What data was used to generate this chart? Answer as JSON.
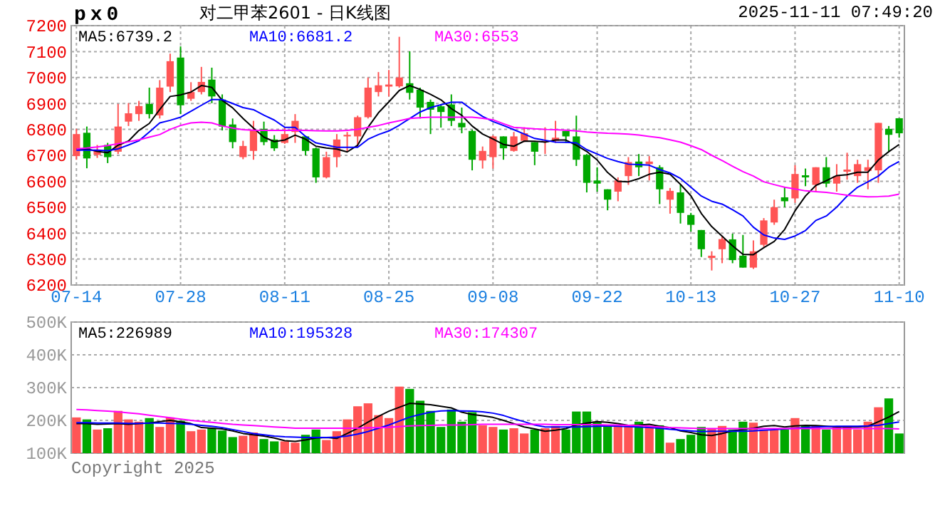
{
  "chart_data": [
    {
      "type": "candlestick",
      "title": "px0",
      "subtitle": "对二甲苯2601 - 日K线图",
      "annotations": [
        "2025-11-11 07:49:20"
      ],
      "categories": [
        "07-14",
        null,
        null,
        null,
        null,
        null,
        null,
        null,
        null,
        null,
        "07-28",
        null,
        null,
        null,
        null,
        null,
        null,
        null,
        null,
        null,
        "08-11",
        null,
        null,
        null,
        null,
        null,
        null,
        null,
        null,
        null,
        "08-25",
        null,
        null,
        null,
        null,
        null,
        null,
        null,
        null,
        null,
        "09-08",
        null,
        null,
        null,
        null,
        null,
        null,
        null,
        null,
        null,
        "09-22",
        null,
        null,
        null,
        null,
        null,
        null,
        null,
        null,
        "10-13",
        null,
        null,
        null,
        null,
        null,
        null,
        null,
        null,
        null,
        "10-27",
        null,
        null,
        null,
        null,
        null,
        null,
        null,
        null,
        null,
        "11-10"
      ],
      "ohlc": [
        [
          6697,
          6802,
          6683,
          6782
        ],
        [
          6787,
          6811,
          6650,
          6688
        ],
        [
          6702,
          6740,
          6690,
          6722
        ],
        [
          6740,
          6748,
          6670,
          6693
        ],
        [
          6714,
          6898,
          6705,
          6811
        ],
        [
          6830,
          6901,
          6813,
          6862
        ],
        [
          6859,
          6910,
          6833,
          6890
        ],
        [
          6898,
          6961,
          6842,
          6859
        ],
        [
          6854,
          6990,
          6842,
          6961
        ],
        [
          6965,
          7092,
          6944,
          7063
        ],
        [
          7077,
          7120,
          6859,
          6893
        ],
        [
          6918,
          6982,
          6910,
          6944
        ],
        [
          6944,
          7041,
          6935,
          6983
        ],
        [
          6992,
          7038,
          6901,
          6927
        ],
        [
          6915,
          6935,
          6796,
          6811
        ],
        [
          6819,
          6842,
          6727,
          6751
        ],
        [
          6693,
          6756,
          6685,
          6736
        ],
        [
          6717,
          6833,
          6683,
          6799
        ],
        [
          6802,
          6830,
          6739,
          6751
        ],
        [
          6761,
          6778,
          6717,
          6727
        ],
        [
          6748,
          6808,
          6744,
          6782
        ],
        [
          6790,
          6859,
          6748,
          6833
        ],
        [
          6773,
          6775,
          6700,
          6717
        ],
        [
          6727,
          6730,
          6594,
          6615
        ],
        [
          6615,
          6714,
          6611,
          6693
        ],
        [
          6693,
          6782,
          6654,
          6761
        ],
        [
          6773,
          6790,
          6714,
          6779
        ],
        [
          6773,
          6853,
          6731,
          6847
        ],
        [
          6847,
          7000,
          6842,
          6961
        ],
        [
          6944,
          7021,
          6927,
          6970
        ],
        [
          6965,
          7029,
          6927,
          6973
        ],
        [
          6966,
          7157,
          6961,
          7000
        ],
        [
          6978,
          7101,
          6915,
          6941
        ],
        [
          6953,
          6961,
          6842,
          6884
        ],
        [
          6906,
          6915,
          6782,
          6876
        ],
        [
          6889,
          6898,
          6807,
          6867
        ],
        [
          6896,
          6935,
          6813,
          6833
        ],
        [
          6825,
          6884,
          6785,
          6808
        ],
        [
          6794,
          6799,
          6642,
          6683
        ],
        [
          6680,
          6734,
          6649,
          6717
        ],
        [
          6693,
          6777,
          6649,
          6773
        ],
        [
          6773,
          6773,
          6683,
          6727
        ],
        [
          6717,
          6790,
          6714,
          6773
        ],
        [
          6756,
          6808,
          6751,
          6785
        ],
        [
          6751,
          6751,
          6662,
          6714
        ],
        [
          6751,
          6808,
          6705,
          6756
        ],
        [
          6756,
          6833,
          6748,
          6768
        ],
        [
          6794,
          6794,
          6748,
          6773
        ],
        [
          6773,
          6853,
          6659,
          6683
        ],
        [
          6702,
          6705,
          6557,
          6594
        ],
        [
          6603,
          6654,
          6560,
          6591
        ],
        [
          6569,
          6569,
          6488,
          6529
        ],
        [
          6560,
          6615,
          6523,
          6603
        ],
        [
          6620,
          6693,
          6586,
          6674
        ],
        [
          6676,
          6705,
          6620,
          6654
        ],
        [
          6666,
          6697,
          6603,
          6676
        ],
        [
          6654,
          6662,
          6512,
          6569
        ],
        [
          6529,
          6574,
          6475,
          6563
        ],
        [
          6557,
          6586,
          6437,
          6478
        ],
        [
          6470,
          6478,
          6406,
          6432
        ],
        [
          6412,
          6412,
          6308,
          6338
        ],
        [
          6304,
          6330,
          6256,
          6313
        ],
        [
          6338,
          6389,
          6284,
          6377
        ],
        [
          6376,
          6398,
          6284,
          6296
        ],
        [
          6313,
          6393,
          6267,
          6267
        ],
        [
          6267,
          6372,
          6262,
          6330
        ],
        [
          6355,
          6458,
          6347,
          6449
        ],
        [
          6441,
          6529,
          6432,
          6500
        ],
        [
          6538,
          6577,
          6500,
          6523
        ],
        [
          6534,
          6662,
          6517,
          6628
        ],
        [
          6623,
          6649,
          6581,
          6615
        ],
        [
          6586,
          6654,
          6560,
          6654
        ],
        [
          6654,
          6693,
          6577,
          6591
        ],
        [
          6591,
          6666,
          6560,
          6620
        ],
        [
          6637,
          6710,
          6606,
          6645
        ],
        [
          6620,
          6683,
          6594,
          6666
        ],
        [
          6640,
          6683,
          6569,
          6654
        ],
        [
          6642,
          6825,
          6594,
          6825
        ],
        [
          6802,
          6813,
          6714,
          6779
        ],
        [
          6843,
          6843,
          6768,
          6785
        ]
      ],
      "colors": [
        "#ff5555",
        "#00a800",
        "#ff5555",
        "#00a800",
        "#ff5555",
        "#ff5555",
        "#ff5555",
        "#00a800",
        "#ff5555",
        "#ff5555",
        "#00a800",
        "#ff5555",
        "#ff5555",
        "#00a800",
        "#00a800",
        "#00a800",
        "#ff5555",
        "#ff5555",
        "#00a800",
        "#00a800",
        "#ff5555",
        "#ff5555",
        "#00a800",
        "#00a800",
        "#ff5555",
        "#ff5555",
        "#ff5555",
        "#ff5555",
        "#ff5555",
        "#ff5555",
        "#ff5555",
        "#ff5555",
        "#00a800",
        "#00a800",
        "#00a800",
        "#00a800",
        "#00a800",
        "#00a800",
        "#00a800",
        "#ff5555",
        "#ff5555",
        "#00a800",
        "#ff5555",
        "#ff5555",
        "#00a800",
        "#ff5555",
        "#ff5555",
        "#00a800",
        "#00a800",
        "#00a800",
        "#00a800",
        "#00a800",
        "#ff5555",
        "#ff5555",
        "#00a800",
        "#ff5555",
        "#00a800",
        "#ff5555",
        "#00a800",
        "#00a800",
        "#00a800",
        "#ff5555",
        "#ff5555",
        "#00a800",
        "#00a800",
        "#ff5555",
        "#ff5555",
        "#ff5555",
        "#00a800",
        "#ff5555",
        "#00a800",
        "#ff5555",
        "#00a800",
        "#ff5555",
        "#ff5555",
        "#ff5555",
        "#ff5555",
        "#ff5555",
        "#00a800",
        "#00a800"
      ],
      "series": [
        {
          "name": "MA5:6739.2",
          "type": "line",
          "color": "#000000",
          "values": [
            6725,
            6725,
            6715,
            6710,
            6739,
            6755,
            6796,
            6823,
            6877,
            6927,
            6933,
            6944,
            6969,
            6962,
            6912,
            6883,
            6842,
            6805,
            6770,
            6753,
            6759,
            6778,
            6762,
            6735,
            6728,
            6724,
            6713,
            6739,
            6808,
            6864,
            6906,
            6950,
            6969,
            6954,
            6935,
            6914,
            6880,
            6854,
            6813,
            6782,
            6763,
            6742,
            6735,
            6755,
            6754,
            6751,
            6759,
            6759,
            6739,
            6715,
            6682,
            6634,
            6600,
            6598,
            6610,
            6627,
            6635,
            6627,
            6588,
            6544,
            6476,
            6425,
            6388,
            6351,
            6318,
            6317,
            6344,
            6368,
            6414,
            6486,
            6543,
            6584,
            6602,
            6622,
            6625,
            6635,
            6635,
            6682,
            6714,
            6742
          ]
        },
        {
          "name": "MA10:6681.2",
          "type": "line",
          "color": "#0000ff",
          "values": [
            6720,
            6720,
            6720,
            6718,
            6725,
            6740,
            6756,
            6790,
            6825,
            6835,
            6847,
            6870,
            6893,
            6915,
            6915,
            6900,
            6884,
            6876,
            6855,
            6836,
            6808,
            6808,
            6773,
            6748,
            6740,
            6731,
            6731,
            6731,
            6762,
            6780,
            6794,
            6816,
            6842,
            6867,
            6884,
            6895,
            6905,
            6905,
            6876,
            6850,
            6830,
            6815,
            6799,
            6782,
            6765,
            6758,
            6751,
            6750,
            6748,
            6722,
            6705,
            6688,
            6676,
            6666,
            6664,
            6662,
            6645,
            6632,
            6611,
            6577,
            6543,
            6523,
            6512,
            6490,
            6466,
            6423,
            6393,
            6381,
            6376,
            6389,
            6410,
            6449,
            6466,
            6500,
            6543,
            6577,
            6598,
            6620,
            6654,
            6676
          ]
        },
        {
          "name": "MA30:6553",
          "type": "line",
          "color": "#ff00ff",
          "values": [
            6725,
            6728,
            6732,
            6738,
            6745,
            6752,
            6760,
            6770,
            6780,
            6800,
            6815,
            6825,
            6828,
            6825,
            6813,
            6805,
            6799,
            6797,
            6796,
            6796,
            6796,
            6797,
            6796,
            6795,
            6794,
            6794,
            6796,
            6800,
            6808,
            6815,
            6825,
            6833,
            6842,
            6845,
            6847,
            6847,
            6847,
            6847,
            6847,
            6843,
            6837,
            6822,
            6808,
            6805,
            6802,
            6800,
            6799,
            6797,
            6794,
            6790,
            6787,
            6785,
            6784,
            6782,
            6778,
            6773,
            6768,
            6760,
            6751,
            6737,
            6722,
            6700,
            6680,
            6658,
            6637,
            6620,
            6598,
            6587,
            6577,
            6570,
            6563,
            6560,
            6557,
            6552,
            6546,
            6543,
            6540,
            6541,
            6543,
            6550
          ]
        }
      ],
      "ylim": [
        6200,
        7200
      ],
      "yticks": [
        6200,
        6300,
        6400,
        6500,
        6600,
        6700,
        6800,
        6900,
        7000,
        7100,
        7200
      ],
      "grid": true,
      "legend": "top left"
    },
    {
      "type": "bar",
      "annotations": [
        "Copyright 2025"
      ],
      "tick_labels": "y",
      "categories": [
        null,
        null,
        null,
        null,
        null,
        null,
        null,
        null,
        null,
        null,
        null,
        null,
        null,
        null,
        null,
        null,
        null,
        null,
        null,
        null,
        null,
        null,
        null,
        null,
        null,
        null,
        null,
        null,
        null,
        null,
        null,
        null,
        null,
        null,
        null,
        null,
        null,
        null,
        null,
        null,
        null,
        null,
        null,
        null,
        null,
        null,
        null,
        null,
        null,
        null,
        null,
        null,
        null,
        null,
        null,
        null,
        null,
        null,
        null,
        null,
        null,
        null,
        null,
        null,
        null,
        null,
        null,
        null,
        null,
        null,
        null,
        null,
        null,
        null,
        null,
        null,
        null,
        null,
        null,
        null
      ],
      "values": [
        209000,
        203000,
        172000,
        176000,
        229000,
        203000,
        196000,
        207000,
        180000,
        209000,
        199000,
        167000,
        172000,
        176000,
        169000,
        149000,
        153000,
        163000,
        143000,
        136000,
        136000,
        132000,
        156000,
        172000,
        140000,
        167000,
        203000,
        243000,
        252000,
        216000,
        207000,
        303000,
        296000,
        260000,
        229000,
        180000,
        233000,
        196000,
        225000,
        185000,
        180000,
        172000,
        176000,
        160000,
        172000,
        176000,
        183000,
        172000,
        227000,
        227000,
        196000,
        183000,
        185000,
        185000,
        196000,
        183000,
        185000,
        132000,
        143000,
        156000,
        180000,
        176000,
        183000,
        172000,
        196000,
        193000,
        172000,
        172000,
        172000,
        207000,
        185000,
        185000,
        172000,
        180000,
        183000,
        172000,
        196000,
        240000,
        267000,
        160000
      ],
      "colors": [
        "#ff5555",
        "#00a800",
        "#ff5555",
        "#00a800",
        "#ff5555",
        "#ff5555",
        "#ff5555",
        "#00a800",
        "#ff5555",
        "#ff5555",
        "#00a800",
        "#ff5555",
        "#ff5555",
        "#00a800",
        "#00a800",
        "#00a800",
        "#ff5555",
        "#ff5555",
        "#00a800",
        "#00a800",
        "#ff5555",
        "#ff5555",
        "#00a800",
        "#00a800",
        "#ff5555",
        "#ff5555",
        "#ff5555",
        "#ff5555",
        "#ff5555",
        "#ff5555",
        "#ff5555",
        "#ff5555",
        "#00a800",
        "#00a800",
        "#00a800",
        "#00a800",
        "#00a800",
        "#00a800",
        "#00a800",
        "#ff5555",
        "#ff5555",
        "#00a800",
        "#ff5555",
        "#ff5555",
        "#00a800",
        "#ff5555",
        "#ff5555",
        "#00a800",
        "#00a800",
        "#00a800",
        "#00a800",
        "#00a800",
        "#ff5555",
        "#ff5555",
        "#00a800",
        "#ff5555",
        "#00a800",
        "#ff5555",
        "#00a800",
        "#00a800",
        "#00a800",
        "#ff5555",
        "#ff5555",
        "#00a800",
        "#00a800",
        "#ff5555",
        "#ff5555",
        "#ff5555",
        "#00a800",
        "#ff5555",
        "#00a800",
        "#ff5555",
        "#00a800",
        "#ff5555",
        "#ff5555",
        "#ff5555",
        "#ff5555",
        "#ff5555",
        "#00a800",
        "#00a800"
      ],
      "series": [
        {
          "name": "MA5:226989",
          "type": "line",
          "color": "#000000",
          "values": [
            190000,
            190000,
            188000,
            189000,
            190000,
            188000,
            190000,
            192000,
            196000,
            200000,
            195000,
            190000,
            178000,
            176000,
            174000,
            168000,
            160000,
            156000,
            152000,
            146000,
            138000,
            136000,
            140000,
            146000,
            148000,
            145000,
            160000,
            176000,
            195000,
            212000,
            228000,
            240000,
            252000,
            250000,
            248000,
            243000,
            238000,
            225000,
            218000,
            214000,
            209000,
            200000,
            190000,
            180000,
            174000,
            167000,
            170000,
            175000,
            186000,
            192000,
            196000,
            194000,
            190000,
            185000,
            186000,
            188000,
            182000,
            178000,
            168000,
            163000,
            156000,
            154000,
            160000,
            168000,
            172000,
            176000,
            182000,
            184000,
            180000,
            183000,
            185000,
            184000,
            182000,
            180000,
            180000,
            180000,
            182000,
            196000,
            210000,
            227000
          ]
        },
        {
          "name": "MA10:195328",
          "type": "line",
          "color": "#0000ff",
          "values": [
            193000,
            193000,
            192000,
            192000,
            192000,
            191000,
            191000,
            192000,
            192000,
            191000,
            190000,
            188000,
            185000,
            182000,
            178000,
            172000,
            166000,
            160000,
            156000,
            152000,
            150000,
            149000,
            148000,
            148000,
            148000,
            149000,
            152000,
            158000,
            166000,
            176000,
            186000,
            198000,
            210000,
            218000,
            225000,
            229000,
            230000,
            229000,
            228000,
            226000,
            222000,
            215000,
            205000,
            196000,
            186000,
            180000,
            180000,
            180000,
            180000,
            181000,
            182000,
            183000,
            182000,
            181000,
            180000,
            178000,
            176000,
            173000,
            170000,
            168000,
            166000,
            167000,
            167000,
            167000,
            167000,
            168000,
            170000,
            172000,
            174000,
            176000,
            178000,
            180000,
            181000,
            182000,
            182000,
            182000,
            183000,
            185000,
            190000,
            195000
          ]
        },
        {
          "name": "MA30:174307",
          "type": "line",
          "color": "#ff00ff",
          "values": [
            233000,
            232000,
            230000,
            228000,
            226000,
            223000,
            220000,
            216000,
            212000,
            208000,
            204000,
            200000,
            197000,
            194000,
            191000,
            188000,
            186000,
            184000,
            182000,
            180000,
            178000,
            176000,
            176000,
            176000,
            176000,
            176000,
            176000,
            176000,
            177000,
            178000,
            179000,
            181000,
            183000,
            184000,
            185000,
            186000,
            186000,
            186000,
            187000,
            188000,
            188000,
            188000,
            188000,
            188000,
            188000,
            188000,
            187000,
            187000,
            187000,
            187000,
            187000,
            186000,
            186000,
            185000,
            184000,
            182000,
            180000,
            178000,
            177000,
            176000,
            175000,
            175000,
            175000,
            175000,
            175000,
            175000,
            175000,
            175000,
            175000,
            175000,
            175000,
            175000,
            175000,
            175000,
            175000,
            175000,
            175000,
            175000,
            175000,
            174000
          ]
        }
      ],
      "ylim": [
        100000,
        500000
      ],
      "yticks": [
        {
          "value": 100000,
          "label": "100K"
        },
        {
          "value": 200000,
          "label": "200K"
        },
        {
          "value": 300000,
          "label": "300K"
        },
        {
          "value": 400000,
          "label": "400K"
        },
        {
          "value": 500000,
          "label": "500K"
        }
      ],
      "grid": "y",
      "legend": "top left"
    }
  ]
}
